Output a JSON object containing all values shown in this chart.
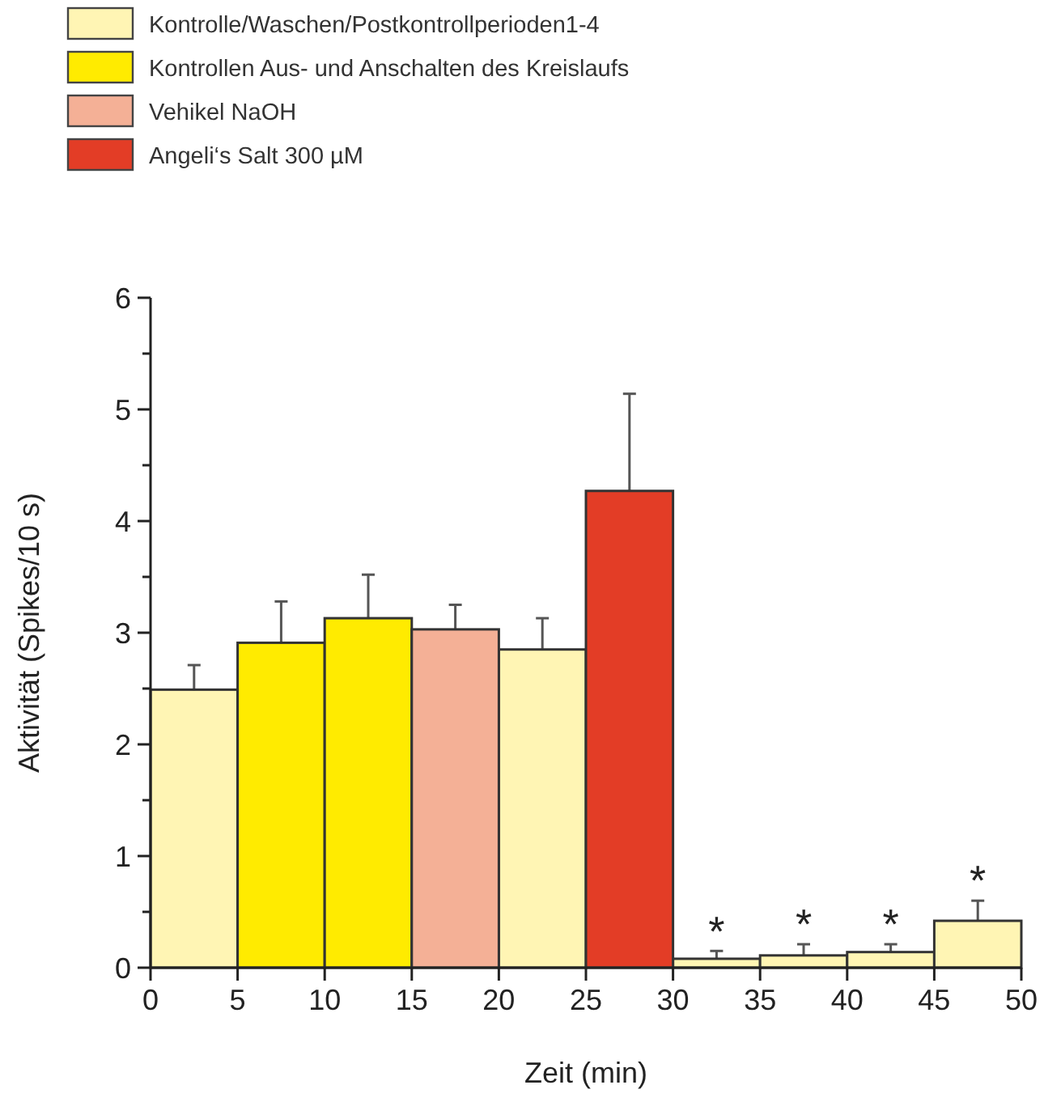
{
  "chart_data": {
    "type": "bar",
    "xlabel": "Zeit (min)",
    "ylabel": "Aktivität (Spikes/10 s)",
    "xlim": [
      0,
      50
    ],
    "xticks": [
      0,
      5,
      10,
      15,
      20,
      25,
      30,
      35,
      40,
      45,
      50
    ],
    "ylim": [
      0,
      6
    ],
    "yticks": [
      0,
      {
        "value": 0.5,
        "label": null
      },
      1,
      {
        "value": 1.5,
        "label": null
      },
      2,
      {
        "value": 2.5,
        "label": null
      },
      3,
      {
        "value": 3.5,
        "label": null
      },
      4,
      {
        "value": 4.5,
        "label": null
      },
      5,
      {
        "value": 5.5,
        "label": null
      },
      6
    ],
    "legend": "top",
    "grid": false,
    "series": [
      {
        "name": "Kontrolle/Waschen/Postkontrollperioden1-4",
        "color": "#fff5b4",
        "x": [
          2.5,
          22.5,
          32.5,
          37.5,
          42.5,
          47.5
        ],
        "values": [
          2.49,
          2.85,
          0.08,
          0.11,
          0.14,
          0.42
        ],
        "errors": [
          [
            2.49,
            2.71
          ],
          [
            2.85,
            3.13
          ],
          [
            0.08,
            0.15
          ],
          [
            0.11,
            0.21
          ],
          [
            0.14,
            0.21
          ],
          [
            0.42,
            0.6
          ]
        ]
      },
      {
        "name": "Kontrollen Aus- und Anschalten des Kreislaufs",
        "color": "#ffeb00",
        "x": [
          7.5,
          12.5
        ],
        "values": [
          2.91,
          3.13
        ],
        "errors": [
          [
            2.91,
            3.28
          ],
          [
            3.13,
            3.52
          ]
        ]
      },
      {
        "name": "Vehikel NaOH",
        "color": "#f4b096",
        "x": [
          17.5
        ],
        "values": [
          3.03
        ],
        "errors": [
          [
            3.03,
            3.25
          ]
        ]
      },
      {
        "name": "Angeli‘s Salt 300 µM",
        "color": "#e33d26",
        "x": [
          27.5
        ],
        "values": [
          4.27
        ],
        "errors": [
          [
            4.27,
            5.14
          ]
        ]
      }
    ],
    "annotations": [
      {
        "text": "*",
        "x": 32.5,
        "y": 0.15
      },
      {
        "text": "*",
        "x": 37.5,
        "y": 0.21
      },
      {
        "text": "*",
        "x": 42.5,
        "y": 0.21
      },
      {
        "text": "*",
        "x": 47.5,
        "y": 0.6
      }
    ]
  }
}
